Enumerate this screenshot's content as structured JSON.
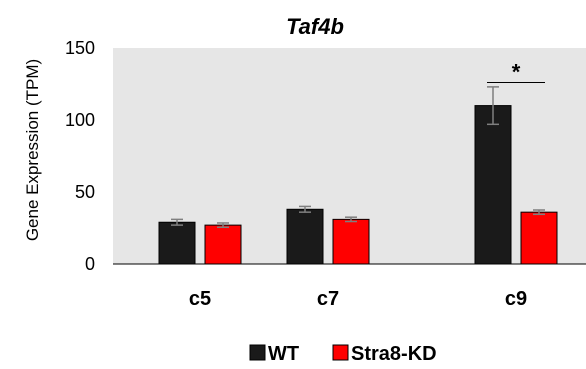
{
  "chart_data": {
    "type": "bar",
    "title": "Taf4b",
    "xlabel": "",
    "ylabel": "Gene Expression (TPM)",
    "ylim": [
      0,
      150
    ],
    "yticks": [
      0,
      50,
      100,
      150
    ],
    "categories": [
      "c5",
      "c7",
      "c9"
    ],
    "series": [
      {
        "name": "WT",
        "color": "#1a1a1a",
        "values": [
          29,
          38,
          110
        ],
        "errors": [
          2,
          2,
          13
        ]
      },
      {
        "name": "Stra8-KD",
        "color": "#ff0000",
        "values": [
          27,
          31,
          36
        ],
        "errors": [
          1.5,
          1.5,
          1.5
        ]
      }
    ],
    "annotations": [
      {
        "text": "*",
        "category": "c9",
        "y": 126
      }
    ],
    "plot_background": "#e6e6e6",
    "grid": false,
    "legend_position": "bottom"
  }
}
